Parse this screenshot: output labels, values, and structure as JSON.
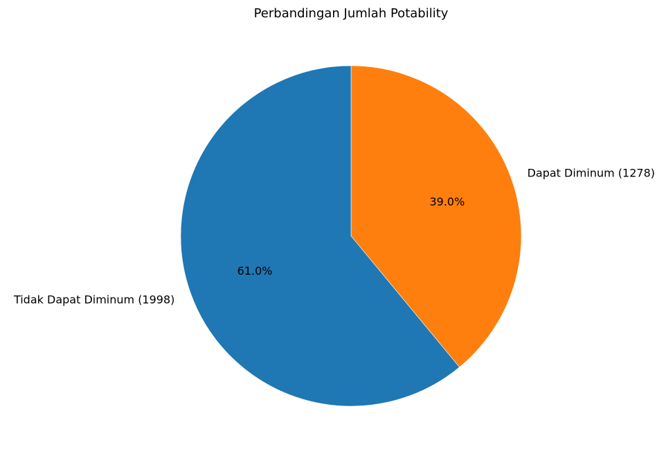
{
  "chart_data": {
    "type": "pie",
    "title": "Perbandingan Jumlah Potability",
    "start_angle_deg": 90,
    "direction": "clockwise",
    "slices": [
      {
        "label": "Dapat Diminum (1278)",
        "value": 1278,
        "percent_label": "39.0%",
        "color": "#ff7f0e"
      },
      {
        "label": "Tidak Dapat Diminum (1998)",
        "value": 1998,
        "percent_label": "61.0%",
        "color": "#1f77b4"
      }
    ]
  }
}
